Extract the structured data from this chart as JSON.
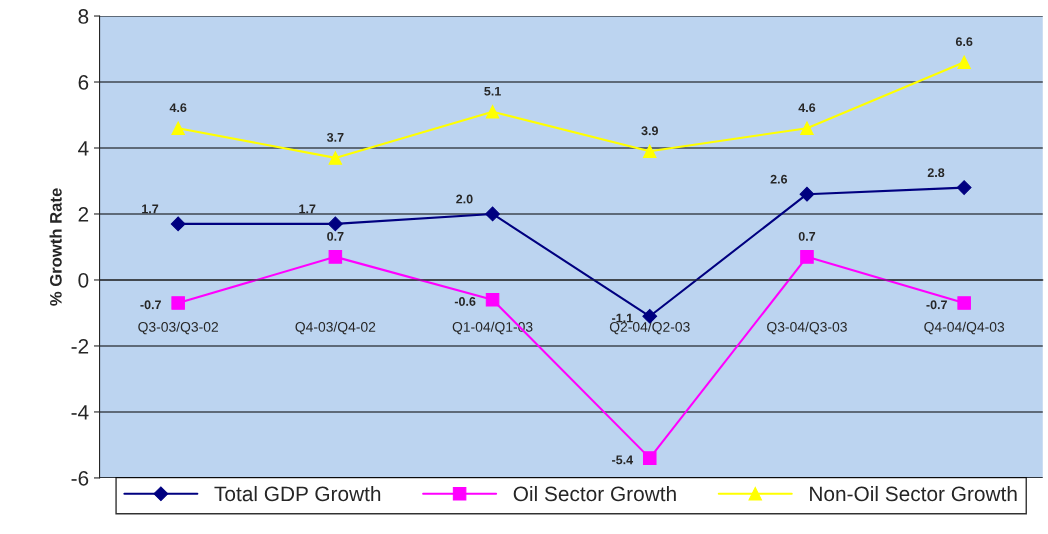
{
  "chart_data": {
    "type": "line",
    "ylabel": "% Growth Rate",
    "categories": [
      "Q3-03/Q3-02",
      "Q4-03/Q4-02",
      "Q1-04/Q1-03",
      "Q2-04/Q2-03",
      "Q3-04/Q3-03",
      "Q4-04/Q4-03"
    ],
    "series": [
      {
        "name": "Total GDP Growth",
        "color": "#000080",
        "marker": "diamond",
        "values": [
          1.7,
          1.7,
          2.0,
          -1.1,
          2.6,
          2.8
        ],
        "value_labels": [
          "1.7",
          "1.7",
          "2.0",
          "-1.1",
          "2.6",
          "2.8"
        ]
      },
      {
        "name": "Oil Sector Growth",
        "color": "#ff00ff",
        "marker": "square",
        "values": [
          -0.7,
          0.7,
          -0.6,
          -5.4,
          0.7,
          -0.7
        ],
        "value_labels": [
          "-0.7",
          "0.7",
          "-0.6",
          "-5.4",
          "0.7",
          "-0.7"
        ]
      },
      {
        "name": "Non-Oil Sector Growth",
        "color": "#ffff00",
        "marker": "triangle",
        "values": [
          4.6,
          3.7,
          5.1,
          3.9,
          4.6,
          6.6
        ],
        "value_labels": [
          "4.6",
          "3.7",
          "5.1",
          "3.9",
          "4.6",
          "6.6"
        ]
      }
    ],
    "ylim": [
      -6,
      8
    ],
    "yticks": [
      -6,
      -4,
      -2,
      0,
      2,
      4,
      6,
      8
    ],
    "grid": "y",
    "legend": "bottom"
  }
}
